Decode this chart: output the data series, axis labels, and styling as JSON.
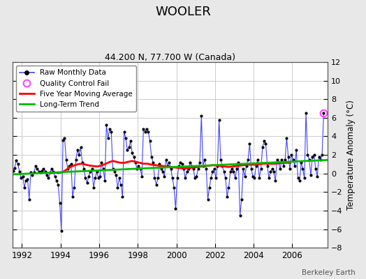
{
  "title": "WOOLER",
  "subtitle": "44.200 N, 77.700 W (Canada)",
  "ylabel": "Temperature Anomaly (°C)",
  "credit": "Berkeley Earth",
  "ylim": [
    -8,
    12
  ],
  "yticks": [
    -8,
    -6,
    -4,
    -2,
    0,
    2,
    4,
    6,
    8,
    10,
    12
  ],
  "xlim": [
    1991.5,
    2007.83
  ],
  "xticks": [
    1992,
    1994,
    1996,
    1998,
    2000,
    2002,
    2004,
    2006
  ],
  "fig_bg_color": "#e8e8e8",
  "plot_bg_color": "#ffffff",
  "raw_line_color": "#4444ff",
  "raw_marker_color": "#000000",
  "moving_avg_color": "#ff0000",
  "trend_color": "#00bb00",
  "qc_fail_color": "#ff44ff",
  "grid_color": "#cccccc",
  "raw_monthly_data": [
    [
      1991.042,
      1.2
    ],
    [
      1991.125,
      1.5
    ],
    [
      1991.208,
      0.8
    ],
    [
      1991.292,
      -0.3
    ],
    [
      1991.375,
      -0.8
    ],
    [
      1991.458,
      -0.2
    ],
    [
      1991.542,
      0.3
    ],
    [
      1991.625,
      0.6
    ],
    [
      1991.708,
      1.4
    ],
    [
      1991.792,
      1.0
    ],
    [
      1991.875,
      0.2
    ],
    [
      1991.958,
      -0.5
    ],
    [
      1992.042,
      -0.3
    ],
    [
      1992.125,
      -1.5
    ],
    [
      1992.208,
      -0.8
    ],
    [
      1992.292,
      -0.6
    ],
    [
      1992.375,
      -2.8
    ],
    [
      1992.458,
      0.1
    ],
    [
      1992.542,
      -0.2
    ],
    [
      1992.625,
      0.1
    ],
    [
      1992.708,
      0.8
    ],
    [
      1992.792,
      0.5
    ],
    [
      1992.875,
      0.2
    ],
    [
      1992.958,
      0.1
    ],
    [
      1993.042,
      0.3
    ],
    [
      1993.125,
      0.5
    ],
    [
      1993.208,
      0.2
    ],
    [
      1993.292,
      -0.2
    ],
    [
      1993.375,
      -0.5
    ],
    [
      1993.458,
      0.1
    ],
    [
      1993.542,
      0.5
    ],
    [
      1993.625,
      0.2
    ],
    [
      1993.708,
      -0.3
    ],
    [
      1993.792,
      -0.8
    ],
    [
      1993.875,
      -1.2
    ],
    [
      1993.958,
      -3.2
    ],
    [
      1994.042,
      -6.2
    ],
    [
      1994.125,
      3.6
    ],
    [
      1994.208,
      3.8
    ],
    [
      1994.292,
      1.5
    ],
    [
      1994.375,
      0.5
    ],
    [
      1994.458,
      0.8
    ],
    [
      1994.542,
      1.0
    ],
    [
      1994.625,
      -2.5
    ],
    [
      1994.708,
      -1.5
    ],
    [
      1994.792,
      1.5
    ],
    [
      1994.875,
      2.5
    ],
    [
      1994.958,
      2.0
    ],
    [
      1995.042,
      2.8
    ],
    [
      1995.125,
      1.2
    ],
    [
      1995.208,
      0.5
    ],
    [
      1995.292,
      -0.5
    ],
    [
      1995.375,
      -1.0
    ],
    [
      1995.458,
      -0.3
    ],
    [
      1995.542,
      0.2
    ],
    [
      1995.625,
      0.5
    ],
    [
      1995.708,
      -1.5
    ],
    [
      1995.792,
      -0.5
    ],
    [
      1995.875,
      0.2
    ],
    [
      1995.958,
      -0.5
    ],
    [
      1996.042,
      -0.3
    ],
    [
      1996.125,
      1.2
    ],
    [
      1996.208,
      0.5
    ],
    [
      1996.292,
      -0.8
    ],
    [
      1996.375,
      5.2
    ],
    [
      1996.458,
      3.8
    ],
    [
      1996.542,
      4.8
    ],
    [
      1996.625,
      4.5
    ],
    [
      1996.708,
      0.5
    ],
    [
      1996.792,
      0.2
    ],
    [
      1996.875,
      -0.2
    ],
    [
      1996.958,
      -1.5
    ],
    [
      1997.042,
      -0.5
    ],
    [
      1997.125,
      -1.2
    ],
    [
      1997.208,
      -2.5
    ],
    [
      1997.292,
      4.5
    ],
    [
      1997.375,
      3.8
    ],
    [
      1997.458,
      2.5
    ],
    [
      1997.542,
      2.8
    ],
    [
      1997.625,
      3.5
    ],
    [
      1997.708,
      2.2
    ],
    [
      1997.792,
      1.8
    ],
    [
      1997.875,
      1.2
    ],
    [
      1997.958,
      0.5
    ],
    [
      1998.042,
      0.8
    ],
    [
      1998.125,
      0.5
    ],
    [
      1998.208,
      -0.3
    ],
    [
      1998.292,
      4.8
    ],
    [
      1998.375,
      4.5
    ],
    [
      1998.458,
      4.8
    ],
    [
      1998.542,
      4.5
    ],
    [
      1998.625,
      3.5
    ],
    [
      1998.708,
      1.8
    ],
    [
      1998.792,
      1.2
    ],
    [
      1998.875,
      -0.5
    ],
    [
      1998.958,
      -1.2
    ],
    [
      1999.042,
      -0.5
    ],
    [
      1999.125,
      1.0
    ],
    [
      1999.208,
      0.5
    ],
    [
      1999.292,
      0.2
    ],
    [
      1999.375,
      -0.3
    ],
    [
      1999.458,
      1.5
    ],
    [
      1999.542,
      0.8
    ],
    [
      1999.625,
      1.2
    ],
    [
      1999.708,
      0.5
    ],
    [
      1999.792,
      -0.5
    ],
    [
      1999.875,
      -1.5
    ],
    [
      1999.958,
      -3.8
    ],
    [
      2000.042,
      -0.5
    ],
    [
      2000.125,
      0.8
    ],
    [
      2000.208,
      1.2
    ],
    [
      2000.292,
      1.0
    ],
    [
      2000.375,
      0.5
    ],
    [
      2000.458,
      -0.5
    ],
    [
      2000.542,
      0.2
    ],
    [
      2000.625,
      0.5
    ],
    [
      2000.708,
      1.2
    ],
    [
      2000.792,
      0.8
    ],
    [
      2000.875,
      0.5
    ],
    [
      2000.958,
      -0.5
    ],
    [
      2001.042,
      -0.3
    ],
    [
      2001.125,
      0.5
    ],
    [
      2001.208,
      1.2
    ],
    [
      2001.292,
      6.2
    ],
    [
      2001.375,
      0.8
    ],
    [
      2001.458,
      1.5
    ],
    [
      2001.542,
      0.5
    ],
    [
      2001.625,
      -2.8
    ],
    [
      2001.708,
      -1.5
    ],
    [
      2001.792,
      -0.5
    ],
    [
      2001.875,
      0.2
    ],
    [
      2001.958,
      0.5
    ],
    [
      2002.042,
      -0.5
    ],
    [
      2002.125,
      0.8
    ],
    [
      2002.208,
      5.8
    ],
    [
      2002.292,
      1.5
    ],
    [
      2002.375,
      0.8
    ],
    [
      2002.458,
      0.2
    ],
    [
      2002.542,
      -0.5
    ],
    [
      2002.625,
      -2.5
    ],
    [
      2002.708,
      -1.5
    ],
    [
      2002.792,
      0.2
    ],
    [
      2002.875,
      0.5
    ],
    [
      2002.958,
      0.2
    ],
    [
      2003.042,
      -0.5
    ],
    [
      2003.125,
      0.5
    ],
    [
      2003.208,
      1.2
    ],
    [
      2003.292,
      -4.5
    ],
    [
      2003.375,
      -2.8
    ],
    [
      2003.458,
      0.5
    ],
    [
      2003.542,
      -0.3
    ],
    [
      2003.625,
      0.8
    ],
    [
      2003.708,
      1.5
    ],
    [
      2003.792,
      3.2
    ],
    [
      2003.875,
      0.5
    ],
    [
      2003.958,
      -0.3
    ],
    [
      2004.042,
      -0.5
    ],
    [
      2004.125,
      0.8
    ],
    [
      2004.208,
      1.5
    ],
    [
      2004.292,
      -0.5
    ],
    [
      2004.375,
      0.5
    ],
    [
      2004.458,
      2.8
    ],
    [
      2004.542,
      3.5
    ],
    [
      2004.625,
      3.2
    ],
    [
      2004.708,
      0.8
    ],
    [
      2004.792,
      -0.5
    ],
    [
      2004.875,
      0.2
    ],
    [
      2004.958,
      0.5
    ],
    [
      2005.042,
      0.2
    ],
    [
      2005.125,
      -0.8
    ],
    [
      2005.208,
      1.5
    ],
    [
      2005.292,
      1.2
    ],
    [
      2005.375,
      0.5
    ],
    [
      2005.458,
      1.5
    ],
    [
      2005.542,
      0.8
    ],
    [
      2005.625,
      1.5
    ],
    [
      2005.708,
      3.8
    ],
    [
      2005.792,
      1.8
    ],
    [
      2005.875,
      0.5
    ],
    [
      2005.958,
      2.0
    ],
    [
      2006.042,
      1.5
    ],
    [
      2006.125,
      0.8
    ],
    [
      2006.208,
      2.5
    ],
    [
      2006.292,
      -0.5
    ],
    [
      2006.375,
      -0.8
    ],
    [
      2006.458,
      1.2
    ],
    [
      2006.542,
      0.5
    ],
    [
      2006.625,
      -0.5
    ],
    [
      2006.708,
      6.5
    ],
    [
      2006.792,
      2.0
    ],
    [
      2006.875,
      1.5
    ],
    [
      2006.958,
      -0.2
    ],
    [
      2007.042,
      1.8
    ],
    [
      2007.125,
      2.0
    ],
    [
      2007.208,
      0.5
    ],
    [
      2007.292,
      -0.3
    ],
    [
      2007.375,
      1.8
    ],
    [
      2007.458,
      1.5
    ],
    [
      2007.542,
      2.0
    ],
    [
      2007.625,
      6.5
    ]
  ],
  "qc_fail_points": [
    [
      2007.625,
      6.5
    ]
  ],
  "moving_avg_data": [
    [
      1993.5,
      0.05
    ],
    [
      1993.7,
      0.1
    ],
    [
      1993.9,
      0.05
    ],
    [
      1994.1,
      0.15
    ],
    [
      1994.3,
      0.4
    ],
    [
      1994.5,
      0.7
    ],
    [
      1994.7,
      0.85
    ],
    [
      1994.9,
      1.0
    ],
    [
      1995.1,
      1.05
    ],
    [
      1995.3,
      0.95
    ],
    [
      1995.5,
      0.85
    ],
    [
      1995.7,
      0.8
    ],
    [
      1995.9,
      0.75
    ],
    [
      1996.1,
      0.85
    ],
    [
      1996.3,
      1.0
    ],
    [
      1996.5,
      1.2
    ],
    [
      1996.7,
      1.35
    ],
    [
      1996.9,
      1.25
    ],
    [
      1997.1,
      1.15
    ],
    [
      1997.3,
      1.15
    ],
    [
      1997.5,
      1.25
    ],
    [
      1997.7,
      1.35
    ],
    [
      1997.9,
      1.25
    ],
    [
      1998.1,
      1.15
    ],
    [
      1998.3,
      1.05
    ],
    [
      1998.5,
      1.05
    ],
    [
      1998.7,
      0.95
    ],
    [
      1998.9,
      0.9
    ],
    [
      1999.1,
      0.85
    ],
    [
      1999.3,
      0.8
    ],
    [
      1999.5,
      0.75
    ],
    [
      1999.7,
      0.7
    ],
    [
      1999.9,
      0.65
    ],
    [
      2000.1,
      0.6
    ],
    [
      2000.3,
      0.55
    ],
    [
      2000.5,
      0.55
    ],
    [
      2000.7,
      0.6
    ],
    [
      2000.9,
      0.65
    ],
    [
      2001.1,
      0.7
    ],
    [
      2001.3,
      0.75
    ],
    [
      2001.5,
      0.8
    ],
    [
      2001.7,
      0.85
    ],
    [
      2001.9,
      0.9
    ],
    [
      2002.1,
      0.85
    ],
    [
      2002.3,
      0.8
    ],
    [
      2002.5,
      0.75
    ],
    [
      2002.7,
      0.7
    ],
    [
      2002.9,
      0.75
    ],
    [
      2003.1,
      0.8
    ],
    [
      2003.3,
      0.85
    ],
    [
      2003.5,
      0.9
    ],
    [
      2003.7,
      0.95
    ],
    [
      2003.9,
      0.95
    ],
    [
      2004.1,
      0.95
    ],
    [
      2004.3,
      1.0
    ],
    [
      2004.5,
      1.05
    ],
    [
      2004.7,
      1.05
    ],
    [
      2004.9,
      1.05
    ],
    [
      2005.1,
      1.05
    ],
    [
      2005.3,
      1.1
    ],
    [
      2005.5,
      1.15
    ],
    [
      2005.7,
      1.15
    ],
    [
      2005.9,
      1.15
    ]
  ],
  "trend_x": [
    1991.5,
    2007.83
  ],
  "trend_y": [
    -0.1,
    1.45
  ]
}
